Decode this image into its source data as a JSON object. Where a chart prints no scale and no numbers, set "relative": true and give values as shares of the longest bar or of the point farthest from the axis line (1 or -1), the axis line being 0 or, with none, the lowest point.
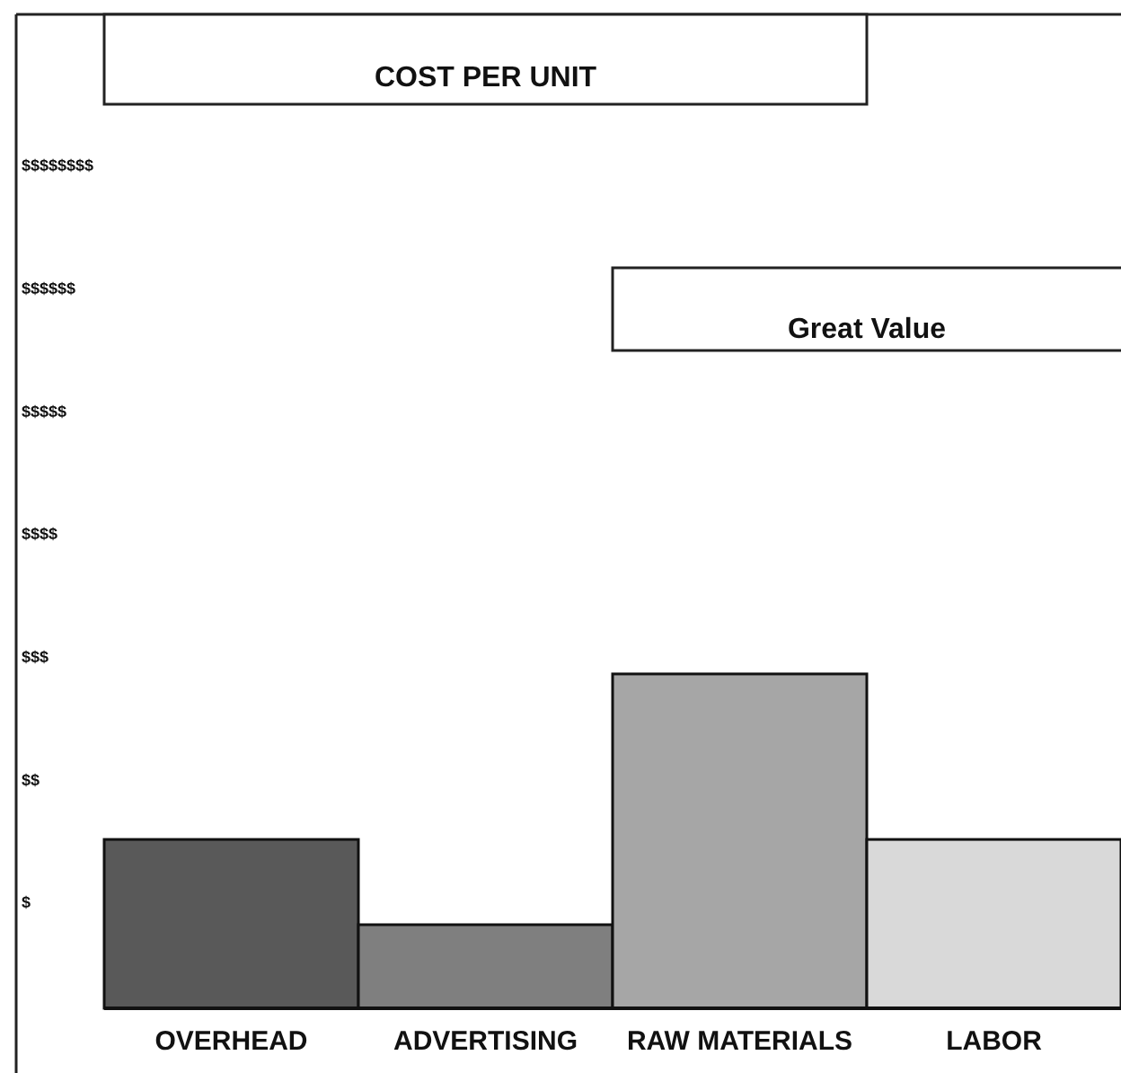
{
  "chart_data": {
    "type": "bar",
    "title": "COST PER UNIT",
    "categories": [
      "OVERHEAD",
      "ADVERTISING",
      "RAW MATERIALS",
      "LABOR"
    ],
    "values": [
      0.505,
      0.25,
      1,
      0.505
    ],
    "colors": [
      "#595959",
      "#7f7f7f",
      "#a6a6a6",
      "#d9d9d9"
    ],
    "relative": true,
    "annotations": [
      "$",
      "$$",
      "$$$",
      "$$$$",
      "$$$$$",
      "$$$$$$",
      "$$$$$$$$",
      "Great Value"
    ]
  }
}
